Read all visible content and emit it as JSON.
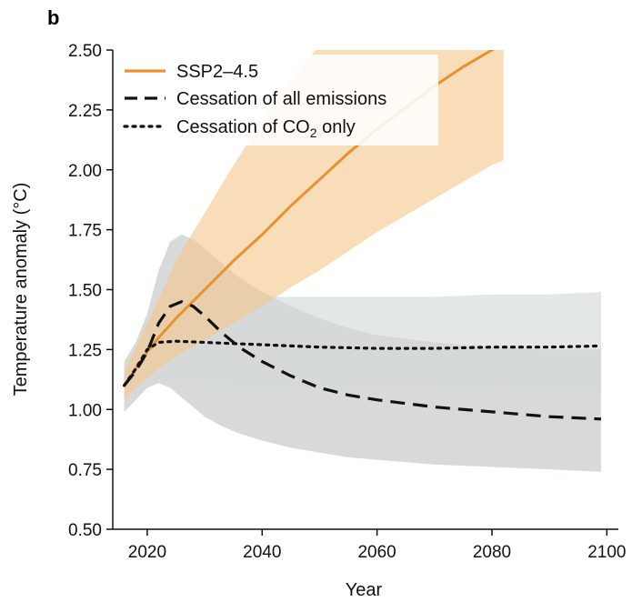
{
  "chart_data": {
    "type": "line",
    "panel_label": "b",
    "title": "",
    "xlabel": "Year",
    "ylabel": "Temperature anomaly (°C)",
    "xlim": [
      2014,
      2102
    ],
    "ylim": [
      0.5,
      2.5
    ],
    "x_ticks": [
      2020,
      2040,
      2060,
      2080,
      2100
    ],
    "y_ticks": [
      0.5,
      0.75,
      1.0,
      1.25,
      1.5,
      1.75,
      2.0,
      2.25,
      2.5
    ],
    "y_tick_labels": [
      "0.50",
      "0.75",
      "1.00",
      "1.25",
      "1.50",
      "1.75",
      "2.00",
      "2.25",
      "2.50"
    ],
    "grid": false,
    "legend_position": "top-left",
    "series": [
      {
        "name": "SSP2–4.5",
        "style": "solid",
        "color": "#E8912D",
        "band_color": "#F6C68D",
        "x": [
          2016,
          2018,
          2020,
          2022,
          2025,
          2030,
          2035,
          2040,
          2045,
          2050,
          2055,
          2060,
          2065,
          2070,
          2075,
          2080,
          2082
        ],
        "values": [
          1.1,
          1.17,
          1.24,
          1.3,
          1.38,
          1.5,
          1.62,
          1.73,
          1.85,
          1.96,
          2.07,
          2.17,
          2.26,
          2.35,
          2.43,
          2.5,
          2.53
        ],
        "band_upper": [
          1.16,
          1.26,
          1.36,
          1.46,
          1.62,
          1.82,
          2.02,
          2.2,
          2.38,
          2.52,
          2.6,
          2.6,
          2.6,
          2.6,
          2.6,
          2.6,
          2.6
        ],
        "band_lower": [
          1.04,
          1.09,
          1.13,
          1.17,
          1.22,
          1.29,
          1.36,
          1.43,
          1.51,
          1.58,
          1.66,
          1.74,
          1.81,
          1.88,
          1.95,
          2.02,
          2.04
        ]
      },
      {
        "name": "Cessation of all emissions",
        "style": "dashed",
        "color": "#111111",
        "band_color": "#BFC2C4",
        "x": [
          2016,
          2018,
          2020,
          2022,
          2024,
          2026,
          2028,
          2030,
          2033,
          2036,
          2040,
          2045,
          2050,
          2055,
          2060,
          2070,
          2080,
          2090,
          2099
        ],
        "values": [
          1.1,
          1.16,
          1.24,
          1.36,
          1.43,
          1.45,
          1.43,
          1.39,
          1.32,
          1.26,
          1.2,
          1.14,
          1.09,
          1.06,
          1.04,
          1.01,
          0.99,
          0.97,
          0.96
        ],
        "band_upper": [
          1.2,
          1.28,
          1.4,
          1.58,
          1.7,
          1.73,
          1.71,
          1.67,
          1.61,
          1.55,
          1.49,
          1.43,
          1.38,
          1.34,
          1.31,
          1.28,
          1.26,
          1.25,
          1.25
        ],
        "band_lower": [
          0.99,
          1.04,
          1.09,
          1.11,
          1.09,
          1.05,
          1.01,
          0.97,
          0.93,
          0.9,
          0.87,
          0.84,
          0.82,
          0.8,
          0.79,
          0.77,
          0.76,
          0.75,
          0.74
        ]
      },
      {
        "name": "Cessation of CO",
        "name_subscript": "2",
        "name_suffix": " only",
        "style": "dotted",
        "color": "#111111",
        "band_color": "#D3D8DA",
        "x": [
          2016,
          2018,
          2020,
          2022,
          2025,
          2030,
          2040,
          2050,
          2060,
          2070,
          2080,
          2090,
          2099
        ],
        "values": [
          1.1,
          1.17,
          1.25,
          1.28,
          1.285,
          1.28,
          1.27,
          1.26,
          1.255,
          1.255,
          1.26,
          1.26,
          1.265
        ],
        "band_upper": [
          1.14,
          1.25,
          1.35,
          1.43,
          1.47,
          1.47,
          1.47,
          1.47,
          1.47,
          1.47,
          1.48,
          1.48,
          1.49
        ],
        "band_lower": [
          1.06,
          1.09,
          1.11,
          1.12,
          1.12,
          1.11,
          1.1,
          1.09,
          1.085,
          1.08,
          1.08,
          1.075,
          1.075
        ]
      }
    ]
  }
}
